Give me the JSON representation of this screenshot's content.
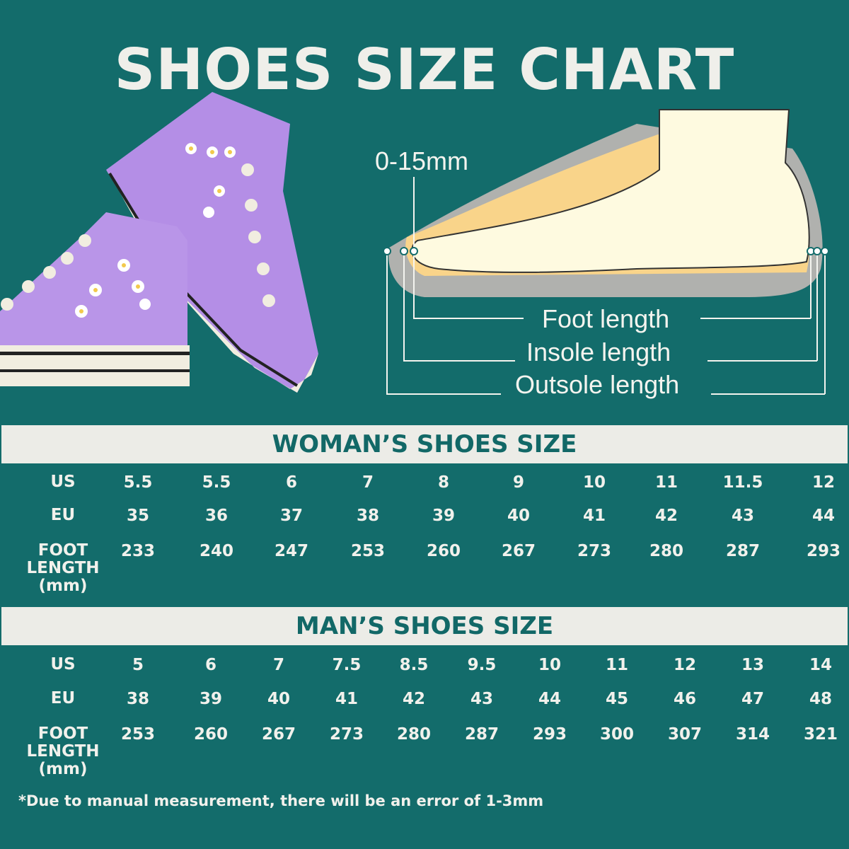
{
  "title": "SHOES SIZE CHART",
  "diagram": {
    "gap_label": "0-15mm",
    "foot_length": "Foot length",
    "insole_length": "Insole length",
    "outsole_length": "Outsole length"
  },
  "colors": {
    "background": "#136c6b",
    "banner": "#ecece7",
    "banner_text": "#126867"
  },
  "woman": {
    "heading": "WOMAN’S SHOES SIZE",
    "rows": [
      {
        "label": "US",
        "values": [
          "5.5",
          "5.5",
          "6",
          "7",
          "8",
          "9",
          "10",
          "11",
          "11.5",
          "12"
        ]
      },
      {
        "label": "EU",
        "values": [
          "35",
          "36",
          "37",
          "38",
          "39",
          "40",
          "41",
          "42",
          "43",
          "44"
        ]
      },
      {
        "label": "FOOT LENGTH (mm)",
        "values": [
          "233",
          "240",
          "247",
          "253",
          "260",
          "267",
          "273",
          "280",
          "287",
          "293"
        ]
      }
    ]
  },
  "man": {
    "heading": "MAN’S SHOES SIZE",
    "rows": [
      {
        "label": "US",
        "values": [
          "5",
          "6",
          "7",
          "7.5",
          "8.5",
          "9.5",
          "10",
          "11",
          "12",
          "13",
          "14"
        ]
      },
      {
        "label": "EU",
        "values": [
          "38",
          "39",
          "40",
          "41",
          "42",
          "43",
          "44",
          "45",
          "46",
          "47",
          "48"
        ]
      },
      {
        "label": "FOOT LENGTH (mm)",
        "values": [
          "253",
          "260",
          "267",
          "273",
          "280",
          "287",
          "293",
          "300",
          "307",
          "314",
          "321"
        ]
      }
    ]
  },
  "footnote": "*Due to manual measurement, there will be an error of 1-3mm"
}
